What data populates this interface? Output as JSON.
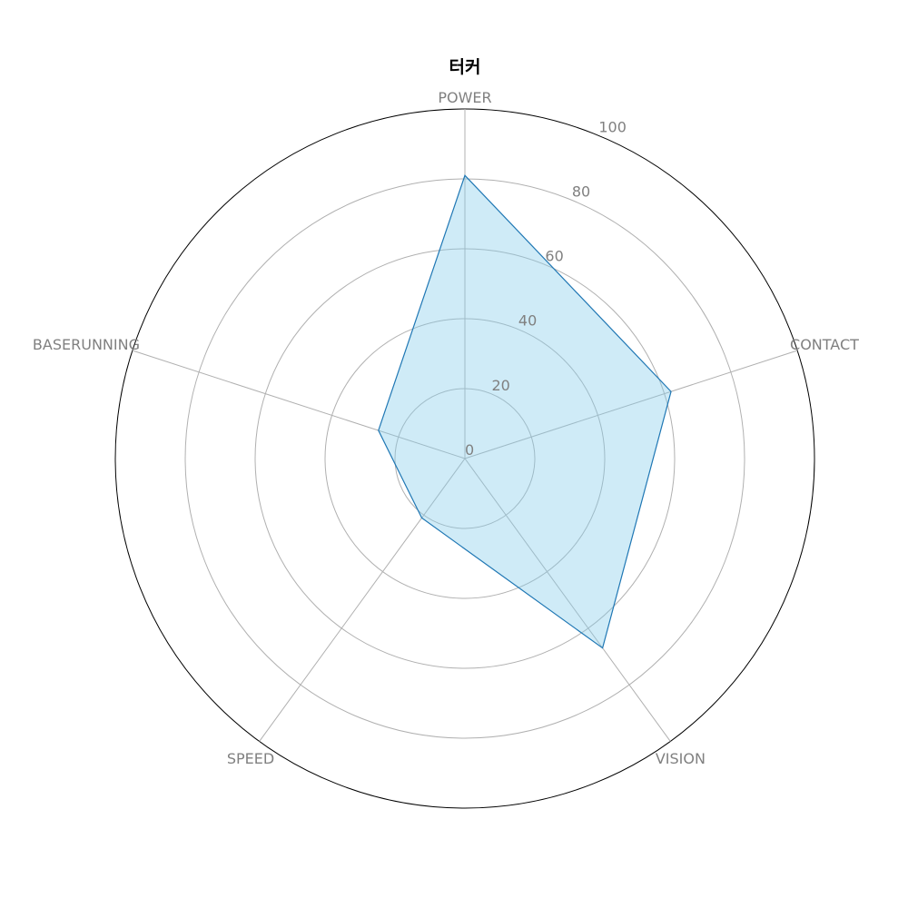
{
  "chart_data": {
    "type": "radar",
    "title": "터커",
    "axes": [
      "POWER",
      "CONTACT",
      "VISION",
      "SPEED",
      "BASERUNNING"
    ],
    "series": [
      {
        "values": [
          81,
          62,
          67,
          21,
          26
        ]
      }
    ],
    "rlim": [
      0,
      100
    ],
    "rticks": [
      0,
      20,
      40,
      60,
      80,
      100
    ],
    "grid": true,
    "colors": {
      "line": "#1f77b4",
      "fill": "#87ceeb"
    }
  }
}
